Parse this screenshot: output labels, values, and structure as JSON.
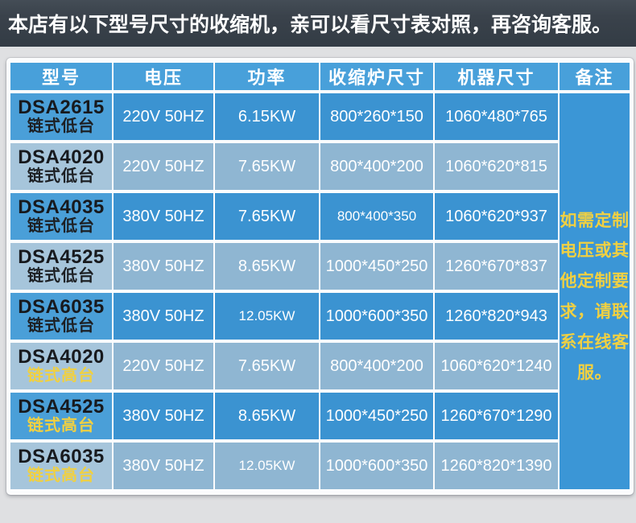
{
  "banner": {
    "text": "本店有以下型号尺寸的收缩机，亲可以看尺寸表对照，再咨询客服。"
  },
  "table": {
    "columns": [
      "型号",
      "电压",
      "功率",
      "收缩炉尺寸",
      "机器尺寸",
      "备注"
    ],
    "rows": [
      {
        "model": "DSA2615",
        "variant": "链式低台",
        "variant_style": "black",
        "voltage": "220V 50HZ",
        "power": "6.15KW",
        "furnace_size": "800*260*150",
        "machine_size": "1060*480*765",
        "shade": "dark",
        "small": []
      },
      {
        "model": "DSA4020",
        "variant": "链式低台",
        "variant_style": "black",
        "voltage": "220V 50HZ",
        "power": "7.65KW",
        "furnace_size": "800*400*200",
        "machine_size": "1060*620*815",
        "shade": "light",
        "small": []
      },
      {
        "model": "DSA4035",
        "variant": "链式低台",
        "variant_style": "black",
        "voltage": "380V 50HZ",
        "power": "7.65KW",
        "furnace_size": "800*400*350",
        "machine_size": "1060*620*937",
        "shade": "dark",
        "small": [
          "furnace_size"
        ]
      },
      {
        "model": "DSA4525",
        "variant": "链式低台",
        "variant_style": "black",
        "voltage": "380V 50HZ",
        "power": "8.65KW",
        "furnace_size": "1000*450*250",
        "machine_size": "1260*670*837",
        "shade": "light",
        "small": []
      },
      {
        "model": "DSA6035",
        "variant": "链式低台",
        "variant_style": "black",
        "voltage": "380V 50HZ",
        "power": "12.05KW",
        "furnace_size": "1000*600*350",
        "machine_size": "1260*820*943",
        "shade": "dark",
        "small": [
          "power"
        ]
      },
      {
        "model": "DSA4020",
        "variant": "链式高台",
        "variant_style": "yellow",
        "voltage": "220V 50HZ",
        "power": "7.65KW",
        "furnace_size": "800*400*200",
        "machine_size": "1060*620*1240",
        "shade": "light",
        "small": []
      },
      {
        "model": "DSA4525",
        "variant": "链式高台",
        "variant_style": "yellow",
        "voltage": "380V 50HZ",
        "power": "8.65KW",
        "furnace_size": "1000*450*250",
        "machine_size": "1260*670*1290",
        "shade": "dark",
        "small": []
      },
      {
        "model": "DSA6035",
        "variant": "链式高台",
        "variant_style": "yellow",
        "voltage": "380V 50HZ",
        "power": "12.05KW",
        "furnace_size": "1000*600*350",
        "machine_size": "1260*820*1390",
        "shade": "light",
        "small": [
          "power"
        ]
      }
    ],
    "remark": "如需定制\n电压或其\n他定制要\n求，请联\n系在线客\n服。"
  },
  "colors": {
    "banner_bg": "#3a424b",
    "header_blue": "#48a0da",
    "row_dark": "#3b93d1",
    "row_light": "#8fb6d2",
    "model_dark": "#4a9fd8",
    "model_light": "#a6c5db",
    "remark_blue": "#3b96d6",
    "accent_yellow": "#f0d042",
    "page_bg": "#dfe0e2",
    "model_text": "#17191d"
  }
}
